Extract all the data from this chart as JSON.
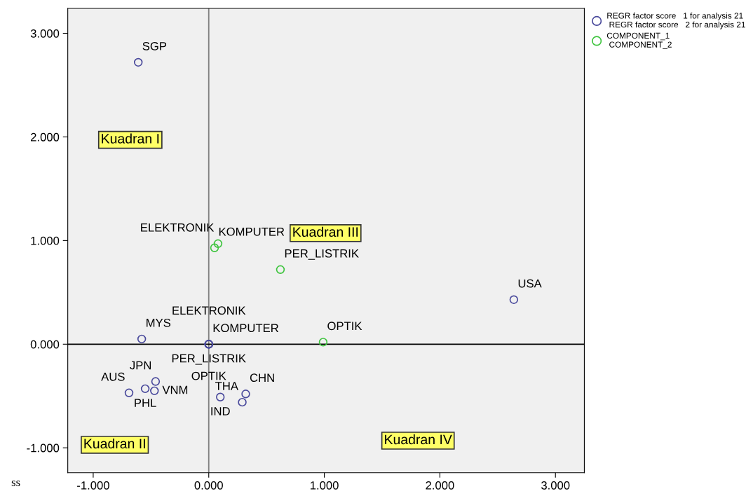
{
  "chart_data": {
    "type": "scatter",
    "marker": "circle",
    "grid": false,
    "legend": "top right",
    "xlim": [
      -1.22,
      3.25
    ],
    "ylim": [
      -1.24,
      3.24
    ],
    "xticks": [
      {
        "value": -1,
        "label": "-1.000"
      },
      {
        "value": 0,
        "label": "0.000"
      },
      {
        "value": 1,
        "label": "1.000"
      },
      {
        "value": 2,
        "label": "2.000"
      },
      {
        "value": 3,
        "label": "3.000"
      }
    ],
    "yticks": [
      {
        "value": -1,
        "label": "-1.000"
      },
      {
        "value": 0,
        "label": "0.000"
      },
      {
        "value": 1,
        "label": "1.000"
      },
      {
        "value": 2,
        "label": "2.000"
      },
      {
        "value": 3,
        "label": "3.000"
      }
    ],
    "series": [
      {
        "name": "REGR factor score   1 for analysis 21\n REGR factor score   2 for analysis 21",
        "color": "#4a4a9c",
        "x": [
          -0.61,
          2.64,
          -0.58,
          0,
          0,
          0,
          0,
          -0.69,
          -0.55,
          -0.46,
          -0.47,
          0.1,
          0.32,
          0.29
        ],
        "values": [
          2.72,
          0.43,
          0.05,
          0,
          0,
          0,
          0,
          -0.47,
          -0.43,
          -0.36,
          -0.45,
          -0.51,
          -0.48,
          -0.56
        ]
      },
      {
        "name": "COMPONENT_1\n COMPONENT_2",
        "color": "#3ec43e",
        "x": [
          0.08,
          0.05,
          0.62,
          0.99
        ],
        "values": [
          0.97,
          0.93,
          0.72,
          0.02
        ]
      }
    ],
    "ref_lines": [
      {
        "axis": "x",
        "value": 0,
        "color": "#808080"
      },
      {
        "axis": "y",
        "value": 0,
        "color": "#000000"
      }
    ],
    "annotations": [
      {
        "text": "SGP",
        "x": -0.61,
        "y": 2.72
      },
      {
        "text": "ELEKTRONIK",
        "x": 0.08,
        "y": 0.97
      },
      {
        "text": "KOMPUTER",
        "x": 0.05,
        "y": 0.93
      },
      {
        "text": "PER_LISTRIK",
        "x": 0.62,
        "y": 0.72
      },
      {
        "text": "USA",
        "x": 2.64,
        "y": 0.43
      },
      {
        "text": "KOMPUTER",
        "x": 0,
        "y": 0
      },
      {
        "text": "MYS",
        "x": -0.58,
        "y": 0.05
      },
      {
        "text": "PER_LISTRIK",
        "x": 0,
        "y": 0
      },
      {
        "text": "OPTIK",
        "x": 0.99,
        "y": 0.02
      },
      {
        "text": "ELEKTRONIK",
        "x": 0,
        "y": 0
      },
      {
        "text": "OPTIK",
        "x": 0,
        "y": 0
      },
      {
        "text": "AUS",
        "x": -0.69,
        "y": -0.47
      },
      {
        "text": "JPN",
        "x": -0.46,
        "y": -0.36
      },
      {
        "text": "PHL",
        "x": -0.55,
        "y": -0.43
      },
      {
        "text": "VNM",
        "x": -0.47,
        "y": -0.45
      },
      {
        "text": "CHN",
        "x": 0.32,
        "y": -0.48
      },
      {
        "text": "IND",
        "x": 0.1,
        "y": -0.51
      },
      {
        "text": "THA",
        "x": 0.29,
        "y": -0.56
      },
      "Kuadran I",
      "Kuadran III",
      "Kuadran II",
      "Kuadran IV",
      "ss"
    ]
  }
}
